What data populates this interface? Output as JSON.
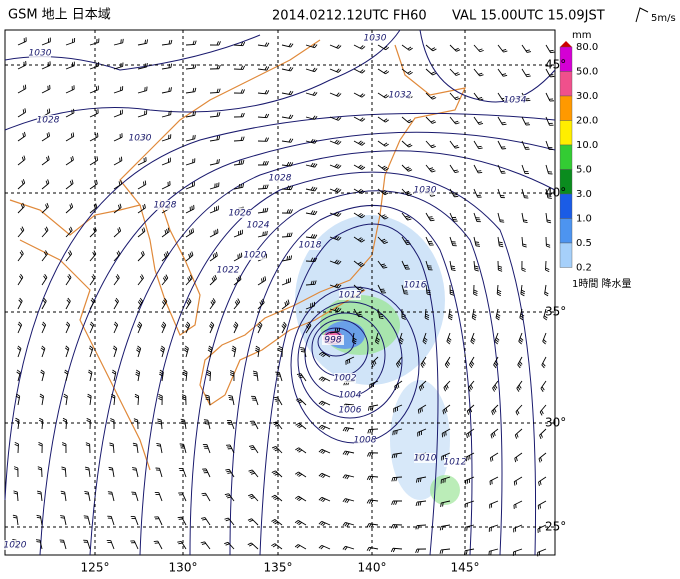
{
  "header": {
    "title": "GSM 地上 日本域",
    "init_time": "2014.0212.12UTC FH60",
    "valid_time": "VAL 15.00UTC 15.09JST",
    "wind_scale": "5m/s"
  },
  "legend": {
    "unit": "mm",
    "labels": [
      "80.0",
      "50.0",
      "30.0",
      "20.0",
      "10.0",
      "5.0",
      "3.0",
      "1.0",
      "0.5",
      "0.2"
    ],
    "title": "1時間 降水量"
  },
  "map": {
    "lat_labels": [
      "45°",
      "40°",
      "35°",
      "30°",
      "25°"
    ],
    "lon_labels": [
      "125°",
      "130°",
      "135°",
      "140°",
      "145°"
    ],
    "isobar_labels": [
      "1030",
      "1030",
      "1032",
      "1034",
      "1028",
      "1030",
      "1028",
      "1028",
      "1026",
      "1024",
      "1022",
      "1020",
      "1018",
      "1016",
      "1012",
      "998",
      "1002",
      "1004",
      "1006",
      "1008",
      "1010",
      "1012",
      "1030",
      "1020"
    ]
  }
}
